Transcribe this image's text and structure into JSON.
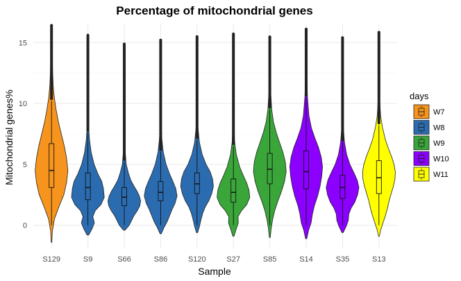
{
  "chart_data": {
    "type": "violin",
    "title": "Percentage of mitochondrial genes",
    "xlabel": "Sample",
    "ylabel": "Mitochondrial genes%",
    "ylim": [
      -1.9,
      16.5
    ],
    "yticks": [
      0,
      5,
      10,
      15
    ],
    "grid": true,
    "legend": {
      "title": "days",
      "position": "right",
      "entries": [
        {
          "name": "W7",
          "color": "#f7941d"
        },
        {
          "name": "W8",
          "color": "#2b6cb0"
        },
        {
          "name": "W9",
          "color": "#3aa63a"
        },
        {
          "name": "W10",
          "color": "#8b00ff"
        },
        {
          "name": "W11",
          "color": "#ffff00"
        }
      ]
    },
    "categories": [
      "S129",
      "S9",
      "S66",
      "S86",
      "S120",
      "S27",
      "S85",
      "S14",
      "S35",
      "S13"
    ],
    "samples": [
      {
        "name": "S129",
        "group": "W7",
        "min": -1.4,
        "max": 16.5,
        "q1": 3.1,
        "median": 4.5,
        "q3": 6.7,
        "lower_whisker": 0.0,
        "upper_whisker": 10.2,
        "density": [
          [
            -1.4,
            0.02
          ],
          [
            -0.5,
            0.05
          ],
          [
            0.5,
            0.18
          ],
          [
            1.5,
            0.45
          ],
          [
            2.5,
            0.75
          ],
          [
            3.5,
            0.92
          ],
          [
            4.5,
            1.0
          ],
          [
            5.5,
            0.92
          ],
          [
            6.5,
            0.78
          ],
          [
            7.5,
            0.6
          ],
          [
            8.5,
            0.42
          ],
          [
            9.5,
            0.28
          ],
          [
            10.5,
            0.17
          ],
          [
            11.5,
            0.1
          ],
          [
            12.5,
            0.07
          ],
          [
            13.5,
            0.05
          ],
          [
            14.5,
            0.04
          ],
          [
            16.5,
            0.02
          ]
        ]
      },
      {
        "name": "S9",
        "group": "W8",
        "min": -0.8,
        "max": 15.7,
        "q1": 2.1,
        "median": 3.1,
        "q3": 4.3,
        "lower_whisker": 0.0,
        "upper_whisker": 7.6,
        "density": [
          [
            -0.8,
            0.05
          ],
          [
            -0.3,
            0.25
          ],
          [
            0.2,
            0.4
          ],
          [
            0.7,
            0.3
          ],
          [
            1.2,
            0.45
          ],
          [
            1.7,
            0.8
          ],
          [
            2.3,
            1.0
          ],
          [
            3.0,
            0.95
          ],
          [
            3.6,
            0.85
          ],
          [
            4.2,
            0.62
          ],
          [
            5.0,
            0.38
          ],
          [
            6.0,
            0.2
          ],
          [
            7.0,
            0.1
          ],
          [
            8.0,
            0.05
          ],
          [
            9.0,
            0.03
          ],
          [
            11.0,
            0.02
          ],
          [
            13.0,
            0.015
          ],
          [
            15.7,
            0.01
          ]
        ]
      },
      {
        "name": "S66",
        "group": "W8",
        "min": -0.4,
        "max": 14.9,
        "q1": 1.6,
        "median": 2.3,
        "q3": 3.1,
        "lower_whisker": 0.0,
        "upper_whisker": 5.2,
        "density": [
          [
            -0.4,
            0.05
          ],
          [
            0.0,
            0.3
          ],
          [
            0.4,
            0.45
          ],
          [
            0.8,
            0.6
          ],
          [
            1.2,
            0.8
          ],
          [
            1.6,
            0.95
          ],
          [
            2.0,
            1.0
          ],
          [
            2.4,
            0.92
          ],
          [
            2.8,
            0.78
          ],
          [
            3.2,
            0.6
          ],
          [
            3.7,
            0.4
          ],
          [
            4.3,
            0.25
          ],
          [
            5.0,
            0.12
          ],
          [
            6.0,
            0.06
          ],
          [
            7.0,
            0.03
          ],
          [
            9.0,
            0.015
          ],
          [
            12.0,
            0.01
          ],
          [
            14.9,
            0.008
          ]
        ]
      },
      {
        "name": "S86",
        "group": "W8",
        "min": -0.7,
        "max": 15.2,
        "q1": 2.0,
        "median": 2.7,
        "q3": 3.6,
        "lower_whisker": 0.0,
        "upper_whisker": 6.0,
        "density": [
          [
            -0.7,
            0.04
          ],
          [
            -0.2,
            0.2
          ],
          [
            0.3,
            0.4
          ],
          [
            0.8,
            0.55
          ],
          [
            1.3,
            0.7
          ],
          [
            1.8,
            0.88
          ],
          [
            2.4,
            1.0
          ],
          [
            3.0,
            0.93
          ],
          [
            3.6,
            0.75
          ],
          [
            4.2,
            0.55
          ],
          [
            5.0,
            0.33
          ],
          [
            6.0,
            0.16
          ],
          [
            7.0,
            0.08
          ],
          [
            8.0,
            0.04
          ],
          [
            10.0,
            0.02
          ],
          [
            12.0,
            0.012
          ],
          [
            15.2,
            0.008
          ]
        ]
      },
      {
        "name": "S120",
        "group": "W8",
        "min": -0.6,
        "max": 15.5,
        "q1": 2.6,
        "median": 3.4,
        "q3": 4.3,
        "lower_whisker": 0.0,
        "upper_whisker": 7.0,
        "density": [
          [
            -0.6,
            0.04
          ],
          [
            -0.1,
            0.15
          ],
          [
            0.5,
            0.25
          ],
          [
            1.0,
            0.35
          ],
          [
            1.5,
            0.5
          ],
          [
            2.0,
            0.72
          ],
          [
            2.6,
            0.9
          ],
          [
            3.2,
            1.0
          ],
          [
            3.8,
            0.95
          ],
          [
            4.4,
            0.8
          ],
          [
            5.0,
            0.55
          ],
          [
            5.8,
            0.32
          ],
          [
            6.8,
            0.15
          ],
          [
            8.0,
            0.06
          ],
          [
            9.5,
            0.03
          ],
          [
            12.0,
            0.015
          ],
          [
            15.5,
            0.008
          ]
        ]
      },
      {
        "name": "S27",
        "group": "W9",
        "min": -0.9,
        "max": 15.8,
        "q1": 1.9,
        "median": 2.7,
        "q3": 3.8,
        "lower_whisker": 0.0,
        "upper_whisker": 6.5,
        "density": [
          [
            -0.9,
            0.04
          ],
          [
            -0.4,
            0.15
          ],
          [
            0.2,
            0.3
          ],
          [
            0.7,
            0.28
          ],
          [
            1.2,
            0.5
          ],
          [
            1.7,
            0.82
          ],
          [
            2.3,
            1.0
          ],
          [
            2.9,
            0.95
          ],
          [
            3.5,
            0.8
          ],
          [
            4.1,
            0.6
          ],
          [
            4.8,
            0.38
          ],
          [
            5.8,
            0.18
          ],
          [
            6.8,
            0.08
          ],
          [
            8.0,
            0.04
          ],
          [
            10.0,
            0.02
          ],
          [
            13.0,
            0.01
          ],
          [
            15.8,
            0.008
          ]
        ]
      },
      {
        "name": "S85",
        "group": "W9",
        "min": -1.0,
        "max": 15.5,
        "q1": 3.4,
        "median": 4.6,
        "q3": 5.9,
        "lower_whisker": 0.0,
        "upper_whisker": 9.5,
        "density": [
          [
            -1.0,
            0.03
          ],
          [
            -0.3,
            0.08
          ],
          [
            0.5,
            0.18
          ],
          [
            1.2,
            0.3
          ],
          [
            2.0,
            0.5
          ],
          [
            2.8,
            0.72
          ],
          [
            3.6,
            0.9
          ],
          [
            4.4,
            1.0
          ],
          [
            5.2,
            0.95
          ],
          [
            6.0,
            0.8
          ],
          [
            6.8,
            0.6
          ],
          [
            7.6,
            0.4
          ],
          [
            8.5,
            0.22
          ],
          [
            9.5,
            0.12
          ],
          [
            11.0,
            0.05
          ],
          [
            13.0,
            0.02
          ],
          [
            15.5,
            0.01
          ]
        ]
      },
      {
        "name": "S14",
        "group": "W10",
        "min": -1.1,
        "max": 16.1,
        "q1": 3.0,
        "median": 4.4,
        "q3": 6.1,
        "lower_whisker": 0.0,
        "upper_whisker": 10.5,
        "density": [
          [
            -1.1,
            0.04
          ],
          [
            -0.4,
            0.15
          ],
          [
            0.2,
            0.3
          ],
          [
            0.9,
            0.38
          ],
          [
            1.6,
            0.5
          ],
          [
            2.4,
            0.7
          ],
          [
            3.2,
            0.85
          ],
          [
            4.0,
            0.95
          ],
          [
            4.8,
            1.0
          ],
          [
            5.6,
            0.92
          ],
          [
            6.4,
            0.75
          ],
          [
            7.2,
            0.52
          ],
          [
            8.0,
            0.32
          ],
          [
            9.0,
            0.17
          ],
          [
            10.5,
            0.08
          ],
          [
            12.5,
            0.03
          ],
          [
            14.5,
            0.015
          ],
          [
            16.1,
            0.01
          ]
        ]
      },
      {
        "name": "S35",
        "group": "W10",
        "min": -0.6,
        "max": 15.5,
        "q1": 2.2,
        "median": 3.1,
        "q3": 4.1,
        "lower_whisker": 0.0,
        "upper_whisker": 6.8,
        "density": [
          [
            -0.6,
            0.04
          ],
          [
            -0.1,
            0.22
          ],
          [
            0.4,
            0.35
          ],
          [
            0.9,
            0.38
          ],
          [
            1.4,
            0.52
          ],
          [
            1.9,
            0.75
          ],
          [
            2.5,
            0.92
          ],
          [
            3.1,
            1.0
          ],
          [
            3.7,
            0.9
          ],
          [
            4.3,
            0.7
          ],
          [
            5.0,
            0.45
          ],
          [
            5.8,
            0.25
          ],
          [
            6.8,
            0.12
          ],
          [
            8.0,
            0.05
          ],
          [
            10.0,
            0.02
          ],
          [
            12.5,
            0.01
          ],
          [
            15.5,
            0.006
          ]
        ]
      },
      {
        "name": "S13",
        "group": "W11",
        "min": -0.9,
        "max": 15.9,
        "q1": 2.6,
        "median": 3.9,
        "q3": 5.3,
        "lower_whisker": 0.0,
        "upper_whisker": 8.2,
        "density": [
          [
            -0.9,
            0.03
          ],
          [
            -0.4,
            0.1
          ],
          [
            0.2,
            0.25
          ],
          [
            0.8,
            0.4
          ],
          [
            1.4,
            0.52
          ],
          [
            2.0,
            0.62
          ],
          [
            2.6,
            0.75
          ],
          [
            3.2,
            0.88
          ],
          [
            3.8,
            0.98
          ],
          [
            4.4,
            1.0
          ],
          [
            5.0,
            0.92
          ],
          [
            5.6,
            0.78
          ],
          [
            6.3,
            0.58
          ],
          [
            7.0,
            0.4
          ],
          [
            8.0,
            0.22
          ],
          [
            9.0,
            0.1
          ],
          [
            10.5,
            0.04
          ],
          [
            13.0,
            0.015
          ],
          [
            15.9,
            0.008
          ]
        ]
      }
    ]
  }
}
